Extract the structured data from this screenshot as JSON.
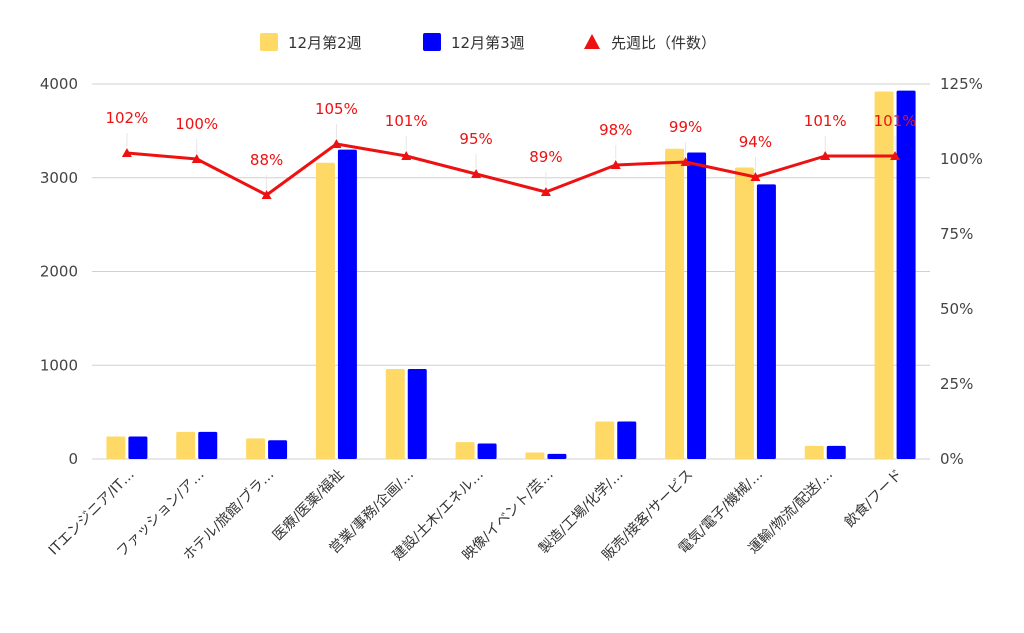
{
  "chart_data": {
    "type": "bar",
    "categories": [
      "ITエンジニア/IT…",
      "ファッション/ア…",
      "ホテル/旅館/ブラ…",
      "医療/医薬/福祉",
      "営業/事務/企画/…",
      "建設/土木/エネル…",
      "映像/イベント/芸…",
      "製造/工場/化学/…",
      "販売/接客/サービス",
      "電気/電子/機械/…",
      "運輸/物流/配送/…",
      "飲食/フード"
    ],
    "series": [
      {
        "name": "12月第2週",
        "type": "bar",
        "color": "#ffd966",
        "values": [
          240,
          290,
          220,
          3160,
          960,
          180,
          70,
          400,
          3310,
          3110,
          140,
          3920
        ]
      },
      {
        "name": "12月第3週",
        "type": "bar",
        "color": "#0000ff",
        "values": [
          240,
          290,
          200,
          3300,
          960,
          165,
          55,
          400,
          3270,
          2930,
          140,
          3930
        ]
      },
      {
        "name": "先週比（件数）",
        "type": "line",
        "axis": "right",
        "color": "#ee1111",
        "values": [
          102,
          100,
          88,
          105,
          101,
          95,
          89,
          98,
          99,
          94,
          101,
          101
        ],
        "labels": [
          "102%",
          "100%",
          "88%",
          "105%",
          "101%",
          "95%",
          "89%",
          "98%",
          "99%",
          "94%",
          "101%",
          "101%"
        ]
      }
    ],
    "y_left": {
      "ylim": [
        0,
        4000
      ],
      "ticks": [
        "0",
        "1000",
        "2000",
        "3000",
        "4000"
      ]
    },
    "y_right": {
      "ylim": [
        0,
        125
      ],
      "ticks": [
        "0%",
        "25%",
        "50%",
        "75%",
        "100%",
        "125%"
      ]
    },
    "grid": true,
    "legend": "top-center"
  }
}
